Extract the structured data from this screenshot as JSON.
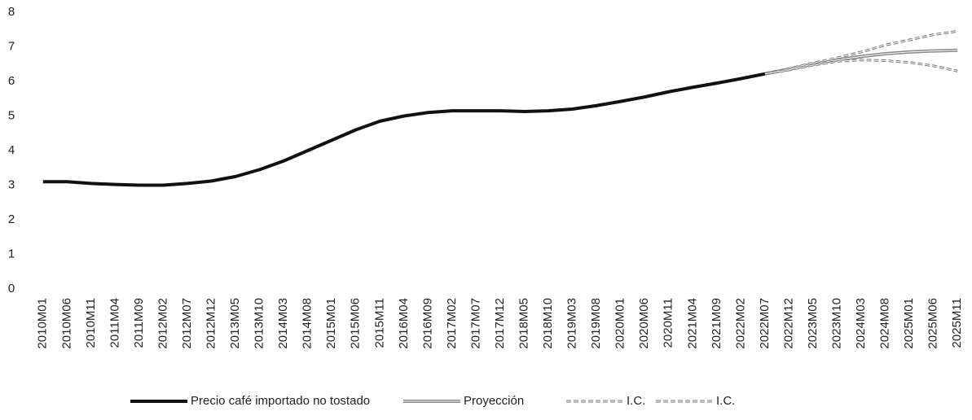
{
  "chart_data": {
    "type": "line",
    "categories": [
      "2010M01",
      "2010M06",
      "2010M11",
      "2011M04",
      "2011M09",
      "2012M02",
      "2012M07",
      "2012M12",
      "2013M05",
      "2013M10",
      "2014M03",
      "2014M08",
      "2015M01",
      "2015M06",
      "2015M11",
      "2016M04",
      "2016M09",
      "2017M02",
      "2017M07",
      "2017M12",
      "2018M05",
      "2018M10",
      "2019M03",
      "2019M08",
      "2020M01",
      "2020M06",
      "2020M11",
      "2021M04",
      "2021M09",
      "2022M02",
      "2022M07",
      "2022M12",
      "2023M05",
      "2023M10",
      "2024M03",
      "2024M08",
      "2025M01",
      "2025M06",
      "2025M11"
    ],
    "series": [
      {
        "name": "Precio  café importado no tostado",
        "color": "#111111",
        "values": [
          3.1,
          3.1,
          3.05,
          3.02,
          3.0,
          3.0,
          3.05,
          3.12,
          3.25,
          3.45,
          3.7,
          4.0,
          4.3,
          4.6,
          4.85,
          5.0,
          5.1,
          5.15,
          5.15,
          5.15,
          5.13,
          5.15,
          5.2,
          5.3,
          5.42,
          5.55,
          5.7,
          5.83,
          5.95,
          6.08,
          6.22,
          null,
          null,
          null,
          null,
          null,
          null,
          null,
          null
        ]
      },
      {
        "name": "Proyección",
        "color": "#888888",
        "values": [
          null,
          null,
          null,
          null,
          null,
          null,
          null,
          null,
          null,
          null,
          null,
          null,
          null,
          null,
          null,
          null,
          null,
          null,
          null,
          null,
          null,
          null,
          null,
          null,
          null,
          null,
          null,
          null,
          null,
          null,
          6.22,
          6.35,
          6.5,
          6.62,
          6.72,
          6.8,
          6.85,
          6.88,
          6.9
        ]
      },
      {
        "name": "I.C.",
        "color": "#777777",
        "values": [
          null,
          null,
          null,
          null,
          null,
          null,
          null,
          null,
          null,
          null,
          null,
          null,
          null,
          null,
          null,
          null,
          null,
          null,
          null,
          null,
          null,
          null,
          null,
          null,
          null,
          null,
          null,
          null,
          null,
          null,
          6.22,
          6.37,
          6.53,
          6.68,
          6.85,
          7.05,
          7.2,
          7.35,
          7.45
        ]
      },
      {
        "name": "I.C.",
        "color": "#777777",
        "values": [
          null,
          null,
          null,
          null,
          null,
          null,
          null,
          null,
          null,
          null,
          null,
          null,
          null,
          null,
          null,
          null,
          null,
          null,
          null,
          null,
          null,
          null,
          null,
          null,
          null,
          null,
          null,
          null,
          null,
          null,
          6.22,
          6.33,
          6.47,
          6.58,
          6.62,
          6.6,
          6.55,
          6.45,
          6.3
        ]
      }
    ],
    "ylim": [
      0,
      8
    ],
    "yticks": [
      0,
      1,
      2,
      3,
      4,
      5,
      6,
      7,
      8
    ],
    "grid": false
  }
}
